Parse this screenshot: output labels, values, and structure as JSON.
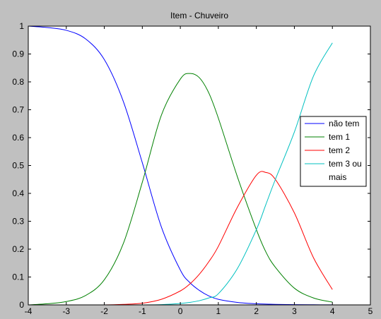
{
  "chart_data": {
    "type": "line",
    "title": "Item - Chuveiro",
    "xlabel": "",
    "ylabel": "",
    "xlim": [
      -4,
      5
    ],
    "ylim": [
      0,
      1
    ],
    "xticks": [
      -4,
      -3,
      -2,
      -1,
      0,
      1,
      2,
      3,
      4,
      5
    ],
    "yticks": [
      0,
      0.1,
      0.2,
      0.3,
      0.4,
      0.5,
      0.6,
      0.7,
      0.8,
      0.9,
      1
    ],
    "grid": false,
    "legend_position": "right",
    "x": [
      -4,
      -3.5,
      -3,
      -2.5,
      -2,
      -1.5,
      -1,
      -0.5,
      0,
      0.25,
      0.5,
      0.75,
      1,
      1.5,
      2,
      2.25,
      2.5,
      3,
      3.5,
      4
    ],
    "series": [
      {
        "name": "não tem",
        "color": "#0000ff",
        "values": [
          1.0,
          0.995,
          0.985,
          0.955,
          0.88,
          0.73,
          0.51,
          0.28,
          0.125,
          0.08,
          0.052,
          0.032,
          0.02,
          0.009,
          0.004,
          0.003,
          0.002,
          0.001,
          0.0005,
          0.0002
        ]
      },
      {
        "name": "tem 1",
        "color": "#008000",
        "values": [
          0.0,
          0.004,
          0.012,
          0.033,
          0.09,
          0.22,
          0.44,
          0.68,
          0.81,
          0.83,
          0.815,
          0.76,
          0.67,
          0.46,
          0.27,
          0.19,
          0.135,
          0.06,
          0.025,
          0.01
        ]
      },
      {
        "name": "tem 2",
        "color": "#ff0000",
        "values": [
          0.0,
          0.0,
          0.0,
          0.0,
          0.0,
          0.002,
          0.006,
          0.02,
          0.05,
          0.075,
          0.11,
          0.155,
          0.21,
          0.35,
          0.465,
          0.475,
          0.45,
          0.33,
          0.17,
          0.055
        ]
      },
      {
        "name": "tem 3 ou\nmais",
        "legend_lines": [
          "tem 3 ou",
          "mais"
        ],
        "color": "#00c0c0",
        "values": [
          0.0,
          0.0,
          0.0,
          0.0,
          0.0,
          0.0,
          0.0,
          0.001,
          0.005,
          0.009,
          0.015,
          0.025,
          0.04,
          0.13,
          0.27,
          0.36,
          0.45,
          0.62,
          0.82,
          0.94
        ]
      }
    ]
  }
}
